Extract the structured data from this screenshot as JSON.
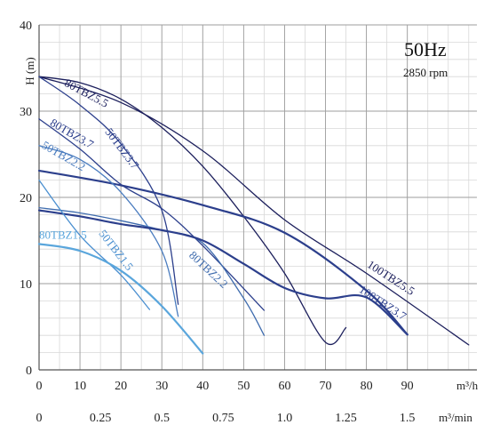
{
  "chart_data": {
    "type": "line",
    "title": "",
    "frequency_label": "50Hz",
    "speed_label": "2850 rpm",
    "ylabel": "H (m)",
    "xlabel": "m³/h",
    "xlabel_secondary": "m³/min",
    "xlim": [
      0,
      107
    ],
    "ylim": [
      0,
      40
    ],
    "x_ticks": [
      0,
      10,
      20,
      30,
      40,
      50,
      60,
      70,
      80,
      90
    ],
    "x_tick_labels": [
      "0",
      "10",
      "20",
      "30",
      "40",
      "50",
      "60",
      "70",
      "80",
      "90"
    ],
    "x2_ticks": [
      0,
      15,
      30,
      45,
      60,
      75,
      90
    ],
    "x2_tick_labels": [
      "0",
      "0.25",
      "0.5",
      "0.75",
      "1.0",
      "1.25",
      "1.5"
    ],
    "y_ticks": [
      0,
      10,
      20,
      30,
      40
    ],
    "y_tick_labels": [
      "0",
      "10",
      "20",
      "30",
      "40"
    ],
    "grid": {
      "major_color": "#9e9e9e",
      "minor_color": "#d8d8d8",
      "minor_x_step": 5,
      "minor_y_step": 2
    },
    "legend": "none",
    "series": [
      {
        "name": "80TBZ5.5",
        "color": "#1c1f5c",
        "width": 1.3,
        "x": [
          0,
          10,
          20,
          30,
          40,
          50,
          60,
          70,
          75
        ],
        "y": [
          34,
          33.3,
          31.4,
          28.1,
          23.6,
          17.8,
          11.2,
          3.2,
          4.9
        ]
      },
      {
        "name": "100TBZ5.5",
        "color": "#1c1f5c",
        "width": 1.3,
        "x": [
          0,
          20,
          40,
          60,
          80,
          105
        ],
        "y": [
          34,
          31,
          25.4,
          17.4,
          11.2,
          2.9
        ]
      },
      {
        "name": "100TBZ3.7",
        "color": "#2c3f8c",
        "width": 2.2,
        "x": [
          0,
          20,
          40,
          60,
          80,
          90
        ],
        "y": [
          23.1,
          21.4,
          19.1,
          15.9,
          9.2,
          4.1
        ]
      },
      {
        "name": "80TBZ3.7",
        "color": "#2c3f8c",
        "width": 1.3,
        "x": [
          0,
          10,
          20,
          30,
          40,
          55
        ],
        "y": [
          29.1,
          25.6,
          21.5,
          18.7,
          14.4,
          6.9
        ]
      },
      {
        "name": "50TBZ3.7",
        "color": "#2c3f8c",
        "width": 1.3,
        "x": [
          0,
          10,
          20,
          30,
          34
        ],
        "y": [
          34,
          30.7,
          26.2,
          18.5,
          7.6
        ]
      },
      {
        "name": "80TBZ2.2",
        "color": "#3f6cae",
        "width": 1.3,
        "x": [
          0,
          10,
          20,
          30,
          40,
          50,
          55
        ],
        "y": [
          18.8,
          18.2,
          17.3,
          16.2,
          14.7,
          8.3,
          4
        ]
      },
      {
        "name": "50TBZ2.2",
        "color": "#4a7cbf",
        "width": 1.3,
        "x": [
          0,
          10,
          20,
          30,
          34
        ],
        "y": [
          26,
          24.4,
          20.6,
          13.8,
          6.2
        ]
      },
      {
        "name": "",
        "color": "#2c3f8c",
        "width": 2.2,
        "x": [
          0,
          10,
          20,
          30,
          40,
          50,
          60,
          70,
          80,
          90
        ],
        "y": [
          18.5,
          17.8,
          16.9,
          16.2,
          15,
          12.3,
          9.5,
          8.3,
          8.4,
          4.1
        ]
      },
      {
        "name": "50TBZ1.5",
        "color": "#4a8fd0",
        "width": 1.3,
        "x": [
          0,
          10,
          20,
          27
        ],
        "y": [
          22,
          15.6,
          11,
          7
        ]
      },
      {
        "name": "80TBZ1.5",
        "color": "#5aa6dc",
        "width": 2.2,
        "x": [
          0,
          10,
          20,
          30,
          40
        ],
        "y": [
          14.6,
          13.8,
          11.5,
          7.4,
          1.9
        ]
      }
    ],
    "curve_labels": [
      {
        "text": "80TBZ5.5",
        "x": 6,
        "y": 33,
        "angle": 28,
        "color": "#1c1f5c"
      },
      {
        "text": "50TBZ3.7",
        "x": 16,
        "y": 27.6,
        "angle": 53,
        "color": "#2c3f8c"
      },
      {
        "text": "80TBZ3.7",
        "x": 2.5,
        "y": 28.4,
        "angle": 30,
        "color": "#2c3f8c"
      },
      {
        "text": "50TBZ2.2",
        "x": 0.5,
        "y": 25.8,
        "angle": 30,
        "color": "#4a7cbf"
      },
      {
        "text": "50TBZ1.5",
        "x": 14.5,
        "y": 15.8,
        "angle": 52,
        "color": "#4a8fd0"
      },
      {
        "text": "80TBZ1.5",
        "x": 0,
        "y": 15.2,
        "angle": 0,
        "color": "#5aa6dc"
      },
      {
        "text": "80TBZ2.2",
        "x": 36.5,
        "y": 13.2,
        "angle": 43,
        "color": "#3f6cae"
      },
      {
        "text": "100TBZ5.5",
        "x": 80,
        "y": 12,
        "angle": 33,
        "color": "#1c1f5c"
      },
      {
        "text": "100TBZ3.7",
        "x": 78,
        "y": 9.1,
        "angle": 33,
        "color": "#2c3f8c"
      }
    ]
  }
}
